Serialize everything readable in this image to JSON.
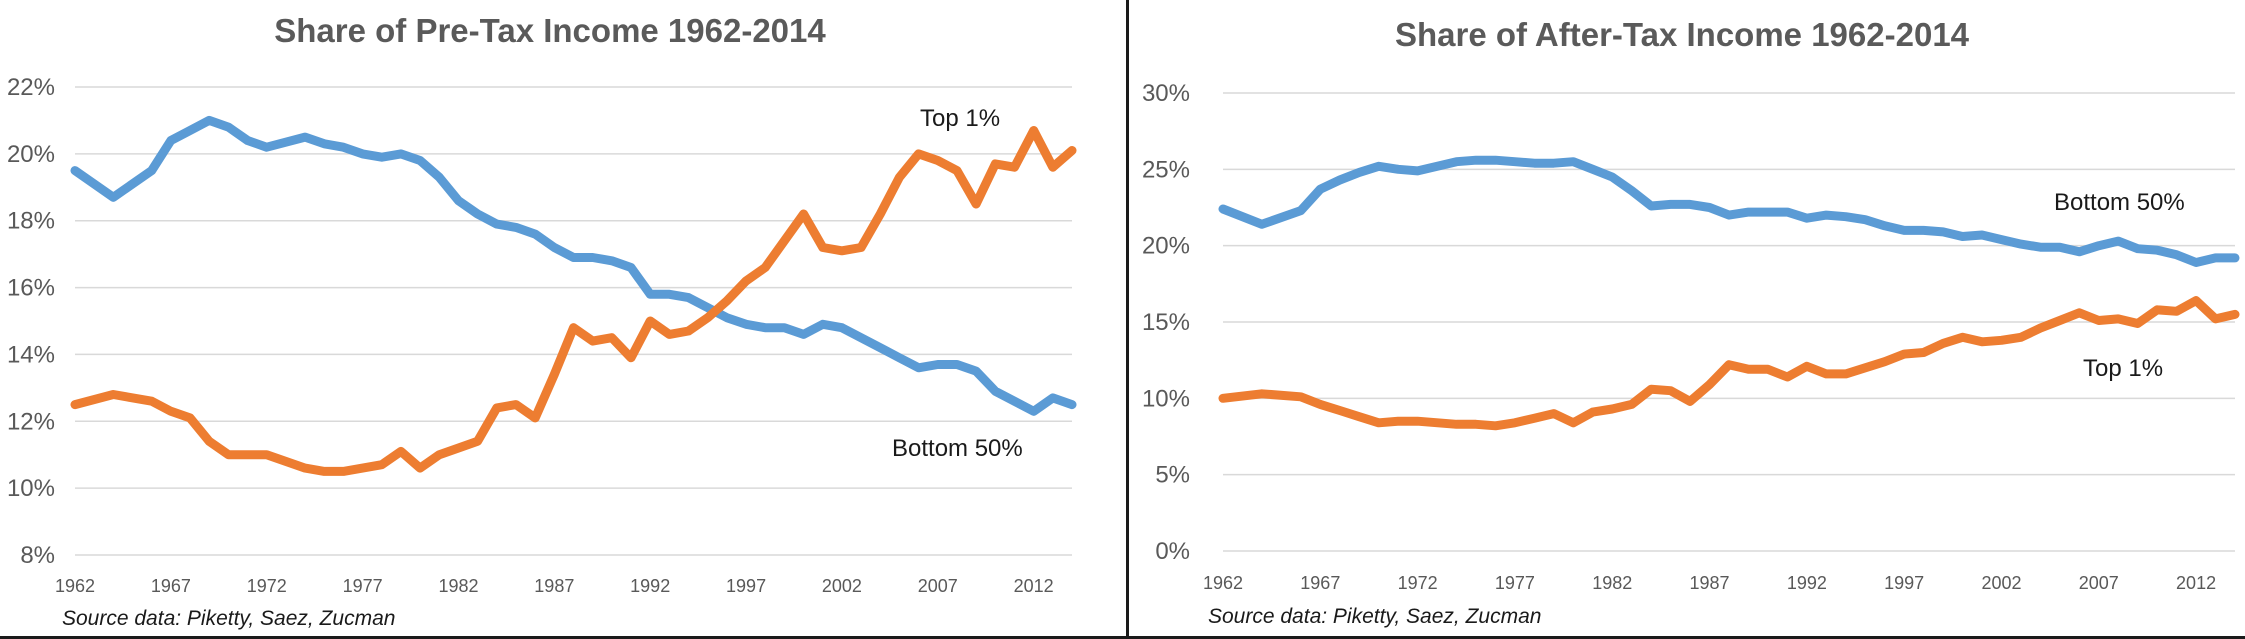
{
  "chart_data": [
    {
      "type": "line",
      "title": "Share of Pre-Tax Income 1962-2014",
      "xlabel": "",
      "ylabel": "",
      "ylim": [
        8,
        22
      ],
      "y_ticks": [
        8,
        10,
        12,
        14,
        16,
        18,
        20,
        22
      ],
      "y_tick_labels": [
        "8%",
        "10%",
        "12%",
        "14%",
        "16%",
        "18%",
        "20%",
        "22%"
      ],
      "x_ticks": [
        1962,
        1967,
        1972,
        1977,
        1982,
        1987,
        1992,
        1997,
        2002,
        2007,
        2012
      ],
      "x_tick_labels": [
        "1962",
        "1967",
        "1972",
        "1977",
        "1982",
        "1987",
        "1992",
        "1997",
        "2002",
        "2007",
        "2012"
      ],
      "xlim": [
        1962,
        2014
      ],
      "grid": true,
      "x": [
        1962,
        1964,
        1966,
        1967,
        1968,
        1969,
        1970,
        1971,
        1972,
        1974,
        1975,
        1976,
        1977,
        1978,
        1979,
        1980,
        1981,
        1982,
        1983,
        1984,
        1985,
        1986,
        1987,
        1988,
        1989,
        1990,
        1991,
        1992,
        1993,
        1994,
        1995,
        1996,
        1997,
        1998,
        1999,
        2000,
        2001,
        2002,
        2003,
        2004,
        2005,
        2006,
        2007,
        2008,
        2009,
        2010,
        2011,
        2012,
        2013,
        2014
      ],
      "series": [
        {
          "name": "Bottom 50%",
          "color": "#5b9bd5",
          "values": [
            19.5,
            18.7,
            19.5,
            20.4,
            20.7,
            21.0,
            20.8,
            20.4,
            20.2,
            20.5,
            20.3,
            20.2,
            20.0,
            19.9,
            20.0,
            19.8,
            19.3,
            18.6,
            18.2,
            17.9,
            17.8,
            17.6,
            17.2,
            16.9,
            16.9,
            16.8,
            16.6,
            15.8,
            15.8,
            15.7,
            15.4,
            15.1,
            14.9,
            14.8,
            14.8,
            14.6,
            14.9,
            14.8,
            14.5,
            14.2,
            13.9,
            13.6,
            13.7,
            13.7,
            13.5,
            12.9,
            12.6,
            12.3,
            12.7,
            12.5
          ]
        },
        {
          "name": "Top 1%",
          "color": "#ed7d31",
          "values": [
            12.5,
            12.8,
            12.6,
            12.3,
            12.1,
            11.4,
            11.0,
            11.0,
            11.0,
            10.6,
            10.5,
            10.5,
            10.6,
            10.7,
            11.1,
            10.6,
            11.0,
            11.2,
            11.4,
            12.4,
            12.5,
            12.1,
            13.4,
            14.8,
            14.4,
            14.5,
            13.9,
            15.0,
            14.6,
            14.7,
            15.1,
            15.6,
            16.2,
            16.6,
            17.4,
            18.2,
            17.2,
            17.1,
            17.2,
            18.2,
            19.3,
            20.0,
            19.8,
            19.5,
            18.5,
            19.7,
            19.6,
            20.7,
            19.6,
            20.1
          ]
        }
      ],
      "annotations": [
        "Top 1%",
        "Bottom 50%"
      ],
      "source": "Source data:  Piketty, Saez, Zucman"
    },
    {
      "type": "line",
      "title": "Share of After-Tax Income 1962-2014",
      "xlabel": "",
      "ylabel": "",
      "ylim": [
        0,
        30
      ],
      "y_ticks": [
        0,
        5,
        10,
        15,
        20,
        25,
        30
      ],
      "y_tick_labels": [
        "0%",
        "5%",
        "10%",
        "15%",
        "20%",
        "25%",
        "30%"
      ],
      "x_ticks": [
        1962,
        1967,
        1972,
        1977,
        1982,
        1987,
        1992,
        1997,
        2002,
        2007,
        2012
      ],
      "x_tick_labels": [
        "1962",
        "1967",
        "1972",
        "1977",
        "1982",
        "1987",
        "1992",
        "1997",
        "2002",
        "2007",
        "2012"
      ],
      "xlim": [
        1962,
        2014
      ],
      "grid": true,
      "x": [
        1962,
        1964,
        1966,
        1967,
        1968,
        1969,
        1970,
        1971,
        1972,
        1974,
        1975,
        1976,
        1977,
        1978,
        1979,
        1980,
        1981,
        1982,
        1983,
        1984,
        1985,
        1986,
        1987,
        1988,
        1989,
        1990,
        1991,
        1992,
        1993,
        1994,
        1995,
        1996,
        1997,
        1998,
        1999,
        2000,
        2001,
        2002,
        2003,
        2004,
        2005,
        2006,
        2007,
        2008,
        2009,
        2010,
        2011,
        2012,
        2013,
        2014
      ],
      "series": [
        {
          "name": "Bottom 50%",
          "color": "#5b9bd5",
          "values": [
            22.4,
            21.4,
            22.3,
            23.7,
            24.3,
            24.8,
            25.2,
            25.0,
            24.9,
            25.5,
            25.6,
            25.6,
            25.5,
            25.4,
            25.4,
            25.5,
            25.0,
            24.5,
            23.6,
            22.6,
            22.7,
            22.7,
            22.5,
            22.0,
            22.2,
            22.2,
            22.2,
            21.8,
            22.0,
            21.9,
            21.7,
            21.3,
            21.0,
            21.0,
            20.9,
            20.6,
            20.7,
            20.4,
            20.1,
            19.9,
            19.9,
            19.6,
            20.0,
            20.3,
            19.8,
            19.7,
            19.4,
            18.9,
            19.2,
            19.2
          ]
        },
        {
          "name": "Top 1%",
          "color": "#ed7d31",
          "values": [
            10.0,
            10.3,
            10.1,
            9.6,
            9.2,
            8.8,
            8.4,
            8.5,
            8.5,
            8.3,
            8.3,
            8.2,
            8.4,
            8.7,
            9.0,
            8.4,
            9.1,
            9.3,
            9.6,
            10.6,
            10.5,
            9.8,
            10.9,
            12.2,
            11.9,
            11.9,
            11.4,
            12.1,
            11.6,
            11.6,
            12.0,
            12.4,
            12.9,
            13.0,
            13.6,
            14.0,
            13.7,
            13.8,
            14.0,
            14.6,
            15.1,
            15.6,
            15.1,
            15.2,
            14.9,
            15.8,
            15.7,
            16.4,
            15.2,
            15.5
          ]
        }
      ],
      "annotations": [
        "Bottom 50%",
        "Top 1%"
      ],
      "source": "Source data:  Piketty, Saez, Zucman"
    }
  ]
}
